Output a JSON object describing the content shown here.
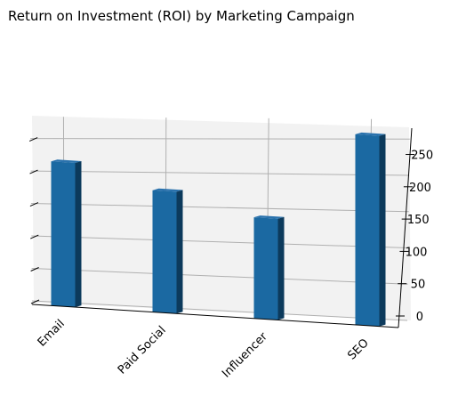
{
  "colors": {
    "bar_front": "#1b69a2",
    "bar_side": "#0c3a5c",
    "bar_top": "#2a72ad",
    "pane_back": "#f2f2f2",
    "grid": "#b0b0b0"
  },
  "chart_data": {
    "type": "bar",
    "title": "Return on Investment (ROI) by Marketing Campaign",
    "xlabel": "",
    "ylabel": "",
    "categories": [
      "Email",
      "Paid Social",
      "Influencer",
      "SEO"
    ],
    "values": [
      220,
      180,
      145,
      265
    ],
    "ylim": [
      0,
      270
    ],
    "yticks": [
      0,
      50,
      100,
      150,
      200,
      250
    ],
    "grid": true,
    "projection": "3d"
  }
}
